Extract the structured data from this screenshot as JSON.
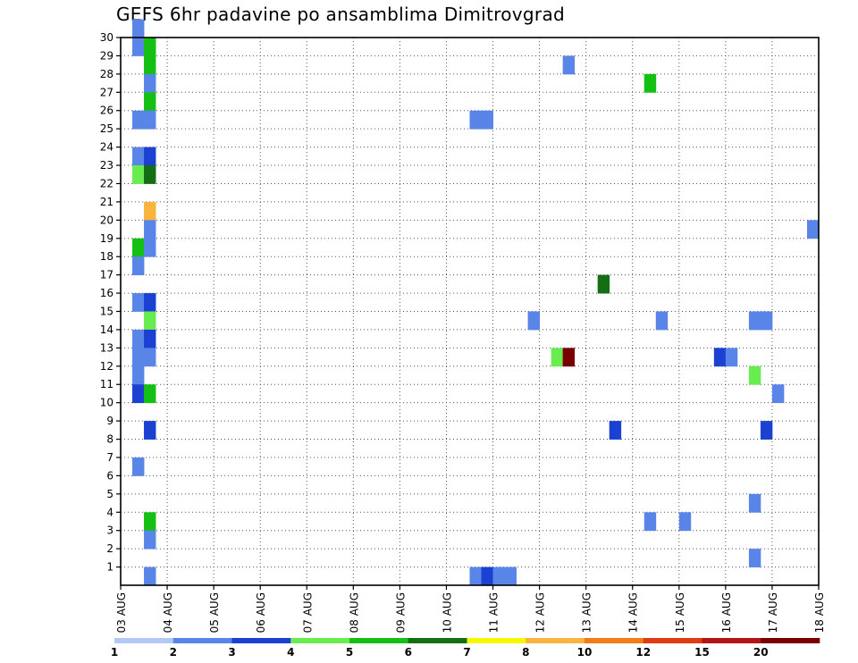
{
  "chart_data": {
    "type": "heatmap",
    "title": "GEFS 6hr padavine po ansamblima Dimitrovgrad",
    "x_tick_labels": [
      "03 AUG",
      "04 AUG",
      "05 AUG",
      "06 AUG",
      "07 AUG",
      "08 AUG",
      "09 AUG",
      "10 AUG",
      "11 AUG",
      "12 AUG",
      "13 AUG",
      "14 AUG",
      "15 AUG",
      "16 AUG",
      "17 AUG",
      "18 AUG"
    ],
    "y_tick_labels": [
      "1",
      "2",
      "3",
      "4",
      "5",
      "6",
      "7",
      "8",
      "9",
      "10",
      "11",
      "12",
      "13",
      "14",
      "15",
      "16",
      "17",
      "18",
      "19",
      "20",
      "21",
      "22",
      "23",
      "24",
      "25",
      "26",
      "27",
      "28",
      "29",
      "30"
    ],
    "xlim": [
      0,
      60
    ],
    "ylim": [
      0,
      30
    ],
    "grid": true,
    "colorbar": {
      "labels": [
        "1",
        "2",
        "3",
        "4",
        "5",
        "6",
        "7",
        "8",
        "10",
        "12",
        "15",
        "20"
      ],
      "colors": [
        "#b4c8f5",
        "#5a85e8",
        "#1a41d2",
        "#68ec50",
        "#14c014",
        "#146e14",
        "#f7f700",
        "#f8b43c",
        "#f27d17",
        "#e03c14",
        "#b41414",
        "#780000"
      ]
    },
    "cells": [
      {
        "t": 1,
        "m": 30,
        "v": 1
      },
      {
        "t": 1,
        "m": 29,
        "v": 1
      },
      {
        "t": 2,
        "m": 29,
        "v": 4
      },
      {
        "t": 2,
        "m": 28,
        "v": 4
      },
      {
        "t": 2,
        "m": 27,
        "v": 1
      },
      {
        "t": 2,
        "m": 26,
        "v": 4
      },
      {
        "t": 1,
        "m": 25,
        "v": 1
      },
      {
        "t": 2,
        "m": 25,
        "v": 1
      },
      {
        "t": 1,
        "m": 23,
        "v": 1
      },
      {
        "t": 2,
        "m": 23,
        "v": 2
      },
      {
        "t": 1,
        "m": 22,
        "v": 3
      },
      {
        "t": 2,
        "m": 22,
        "v": 5
      },
      {
        "t": 2,
        "m": 20,
        "v": 7
      },
      {
        "t": 2,
        "m": 19,
        "v": 1
      },
      {
        "t": 1,
        "m": 18,
        "v": 4
      },
      {
        "t": 2,
        "m": 18,
        "v": 1
      },
      {
        "t": 1,
        "m": 17,
        "v": 1
      },
      {
        "t": 1,
        "m": 15,
        "v": 1
      },
      {
        "t": 2,
        "m": 15,
        "v": 2
      },
      {
        "t": 2,
        "m": 14,
        "v": 3
      },
      {
        "t": 1,
        "m": 13,
        "v": 1
      },
      {
        "t": 2,
        "m": 13,
        "v": 2
      },
      {
        "t": 1,
        "m": 12,
        "v": 1
      },
      {
        "t": 2,
        "m": 12,
        "v": 1
      },
      {
        "t": 1,
        "m": 11,
        "v": 1
      },
      {
        "t": 1,
        "m": 10,
        "v": 2
      },
      {
        "t": 2,
        "m": 10,
        "v": 4
      },
      {
        "t": 2,
        "m": 8,
        "v": 2
      },
      {
        "t": 1,
        "m": 6,
        "v": 1
      },
      {
        "t": 2,
        "m": 3,
        "v": 4
      },
      {
        "t": 2,
        "m": 2,
        "v": 1
      },
      {
        "t": 2,
        "m": 0,
        "v": 1
      },
      {
        "t": 30,
        "m": 0,
        "v": 1
      },
      {
        "t": 31,
        "m": 0,
        "v": 2
      },
      {
        "t": 32,
        "m": 0,
        "v": 1
      },
      {
        "t": 33,
        "m": 0,
        "v": 1
      },
      {
        "t": 38,
        "m": 28,
        "v": 1
      },
      {
        "t": 45,
        "m": 27,
        "v": 4
      },
      {
        "t": 30,
        "m": 25,
        "v": 1
      },
      {
        "t": 31,
        "m": 25,
        "v": 1
      },
      {
        "t": 41,
        "m": 16,
        "v": 5
      },
      {
        "t": 35,
        "m": 14,
        "v": 1
      },
      {
        "t": 46,
        "m": 14,
        "v": 1
      },
      {
        "t": 54,
        "m": 14,
        "v": 1
      },
      {
        "t": 55,
        "m": 14,
        "v": 1
      },
      {
        "t": 37,
        "m": 12,
        "v": 3
      },
      {
        "t": 38,
        "m": 12,
        "v": 11
      },
      {
        "t": 51,
        "m": 12,
        "v": 2
      },
      {
        "t": 52,
        "m": 12,
        "v": 1
      },
      {
        "t": 54,
        "m": 11,
        "v": 3
      },
      {
        "t": 56,
        "m": 10,
        "v": 1
      },
      {
        "t": 59,
        "m": 19,
        "v": 1
      },
      {
        "t": 42,
        "m": 8,
        "v": 2
      },
      {
        "t": 55,
        "m": 8,
        "v": 2
      },
      {
        "t": 54,
        "m": 4,
        "v": 1
      },
      {
        "t": 45,
        "m": 3,
        "v": 1
      },
      {
        "t": 48,
        "m": 3,
        "v": 1
      },
      {
        "t": 54,
        "m": 1,
        "v": 1
      }
    ]
  }
}
